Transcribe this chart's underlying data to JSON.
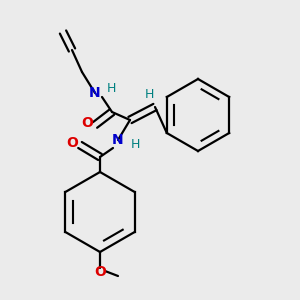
{
  "background_color": "#ebebeb",
  "bond_color": "#000000",
  "N_color": "#0000cc",
  "O_color": "#dd0000",
  "H_color": "#008080",
  "line_width": 1.6,
  "figsize": [
    3.0,
    3.0
  ],
  "dpi": 100,
  "xlim": [
    0,
    300
  ],
  "ylim": [
    0,
    300
  ]
}
